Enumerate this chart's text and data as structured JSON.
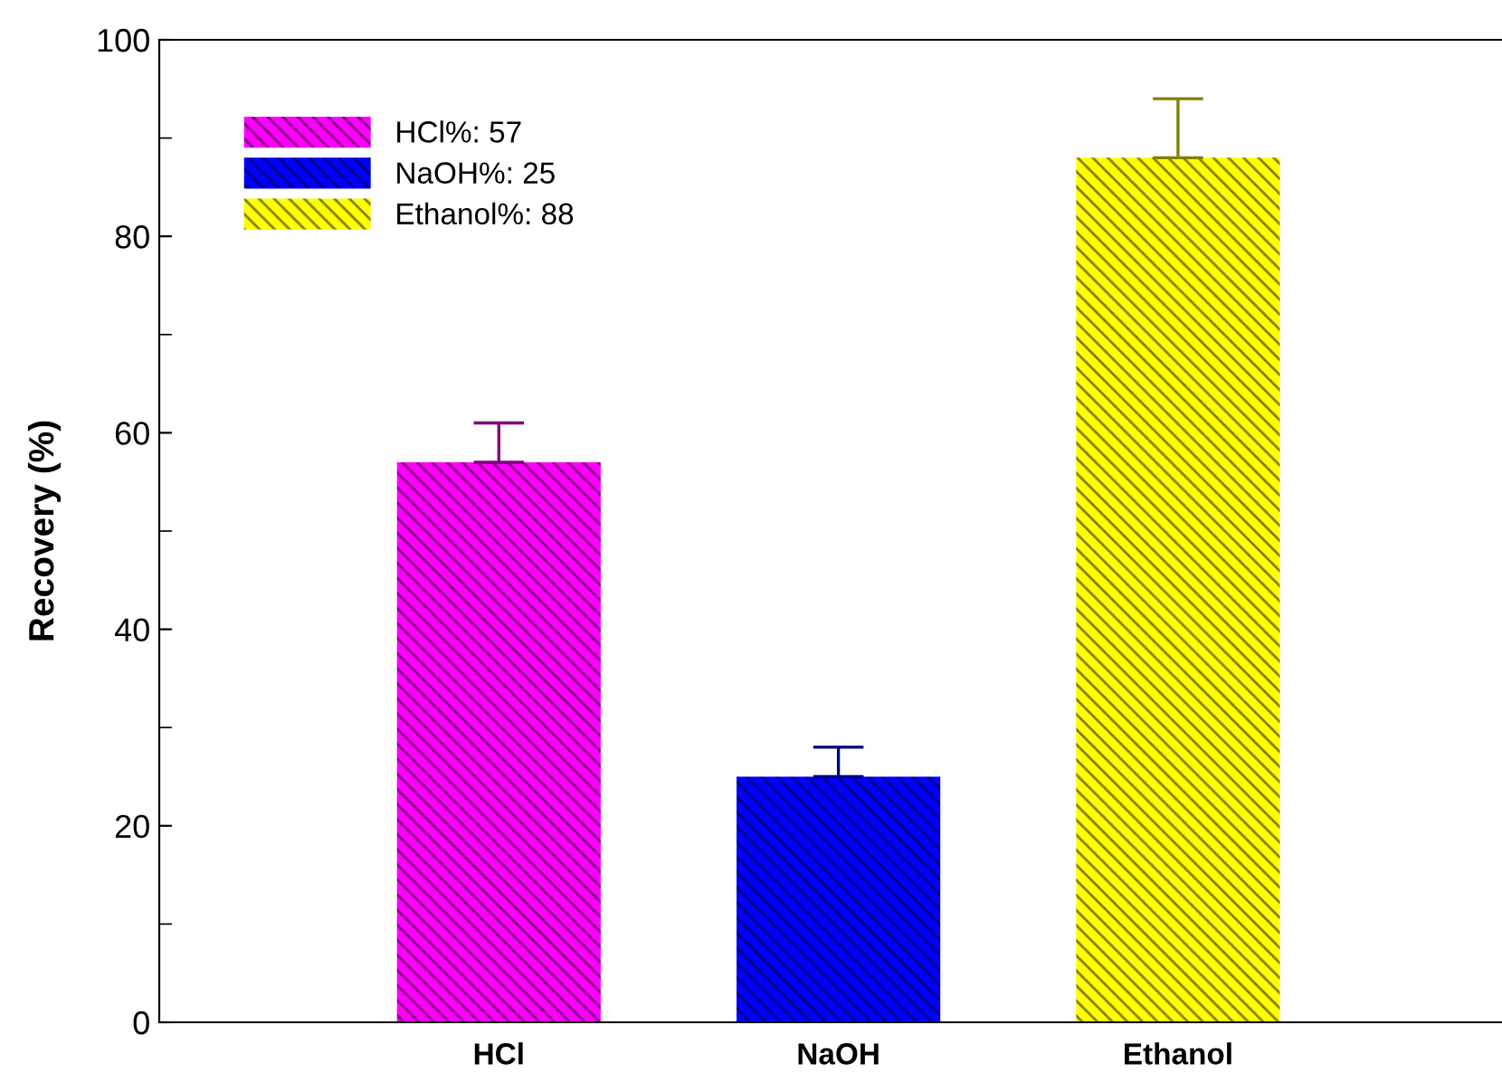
{
  "chart_data": {
    "type": "bar",
    "ylabel": "Recovery (%)",
    "categories": [
      "HCl",
      "NaOH",
      "Ethanol"
    ],
    "series": [
      {
        "name": "HCl%: 57",
        "color": "#ff00ff",
        "values": [
          57,
          null,
          null
        ],
        "errors": [
          [
            57,
            61
          ],
          null,
          null
        ]
      },
      {
        "name": "NaOH%: 25",
        "color": "#0000ff",
        "values": [
          null,
          25,
          null
        ],
        "errors": [
          null,
          [
            25,
            28
          ],
          null
        ]
      },
      {
        "name": "Ethanol%: 88",
        "color": "#ffff00",
        "values": [
          null,
          null,
          88
        ],
        "errors": [
          null,
          null,
          [
            88,
            94
          ]
        ]
      }
    ],
    "ylim": [
      0,
      100
    ],
    "yticks": [
      0,
      20,
      40,
      60,
      80,
      100
    ],
    "grid": false,
    "legend": "top left"
  }
}
